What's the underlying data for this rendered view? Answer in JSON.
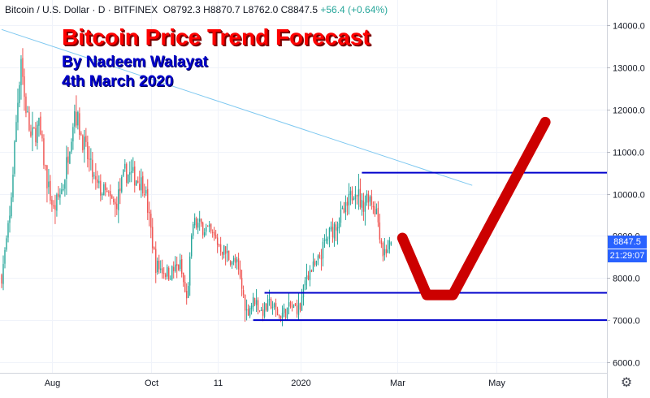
{
  "header": {
    "symbol": "Bitcoin / U.S. Dollar",
    "sep1": "·",
    "interval": "D",
    "sep2": "·",
    "exchange": "BITFINEX",
    "o_label": "O",
    "o_value": "8792.3",
    "h_label": "H",
    "h_value": "8870.7",
    "l_label": "L",
    "l_value": "8762.0",
    "c_label": "C",
    "c_value": "8847.5",
    "change": "+56.4 (+0.64%)"
  },
  "annotation": {
    "title": "Bitcoin Price Trend Forecast",
    "author": "By Nadeem Walayat",
    "date": "4th March 2020"
  },
  "price_badge": {
    "value": "8847.5",
    "color": "#2962ff"
  },
  "time_badge": {
    "value": "21:29:07",
    "color": "#2962ff"
  },
  "settings_icon": "gear-icon",
  "colors": {
    "up": "#26a69a",
    "down": "#ef5350",
    "level_lines": "#0000cc",
    "trendline": "#7ec8f0",
    "forecast": "#cc0000"
  },
  "chart_data": {
    "type": "candlestick",
    "symbol": "Bitcoin / U.S. Dollar",
    "interval": "D",
    "exchange": "BITFINEX",
    "ylim": [
      5750,
      14600
    ],
    "y_ticks": [
      6000,
      7000,
      8000,
      9000,
      10000,
      11000,
      12000,
      13000,
      14000
    ],
    "y_tick_labels": [
      "6000.0",
      "7000.0",
      "8000.0",
      "9000.0",
      "10000.0",
      "11000.0",
      "12000.0",
      "13000.0",
      "14000.0"
    ],
    "x_ticks": [
      {
        "label": "Aug",
        "day": 31
      },
      {
        "label": "Oct",
        "day": 92
      },
      {
        "label": "11",
        "day": 133
      },
      {
        "label": "2020",
        "day": 184
      },
      {
        "label": "Mar",
        "day": 244
      },
      {
        "label": "May",
        "day": 305
      }
    ],
    "x_range_days": [
      -1,
      373
    ],
    "last_price": 8847.5,
    "last_ohlc": {
      "open": 8792.3,
      "high": 8870.7,
      "low": 8762.0,
      "close": 8847.5,
      "change": 56.4,
      "change_pct": 0.64
    },
    "anchors": [
      {
        "day": 0,
        "price": 8050
      },
      {
        "day": 5,
        "price": 9400
      },
      {
        "day": 9,
        "price": 11700
      },
      {
        "day": 12,
        "price": 13300
      },
      {
        "day": 14,
        "price": 12300
      },
      {
        "day": 18,
        "price": 11300
      },
      {
        "day": 23,
        "price": 11600
      },
      {
        "day": 28,
        "price": 10300
      },
      {
        "day": 32,
        "price": 9600
      },
      {
        "day": 38,
        "price": 10200
      },
      {
        "day": 45,
        "price": 12000
      },
      {
        "day": 52,
        "price": 11000
      },
      {
        "day": 58,
        "price": 10200
      },
      {
        "day": 64,
        "price": 10000
      },
      {
        "day": 70,
        "price": 9700
      },
      {
        "day": 76,
        "price": 10500
      },
      {
        "day": 82,
        "price": 10400
      },
      {
        "day": 88,
        "price": 10200
      },
      {
        "day": 95,
        "price": 8300
      },
      {
        "day": 103,
        "price": 8100
      },
      {
        "day": 110,
        "price": 8300
      },
      {
        "day": 114,
        "price": 7450
      },
      {
        "day": 118,
        "price": 9300
      },
      {
        "day": 125,
        "price": 9200
      },
      {
        "day": 132,
        "price": 8900
      },
      {
        "day": 138,
        "price": 8600
      },
      {
        "day": 145,
        "price": 8300
      },
      {
        "day": 151,
        "price": 7200
      },
      {
        "day": 156,
        "price": 7500
      },
      {
        "day": 160,
        "price": 7200
      },
      {
        "day": 166,
        "price": 7400
      },
      {
        "day": 171,
        "price": 7100
      },
      {
        "day": 178,
        "price": 7300
      },
      {
        "day": 184,
        "price": 7300
      },
      {
        "day": 188,
        "price": 8100
      },
      {
        "day": 194,
        "price": 8300
      },
      {
        "day": 200,
        "price": 8900
      },
      {
        "day": 206,
        "price": 9300
      },
      {
        "day": 212,
        "price": 9600
      },
      {
        "day": 218,
        "price": 10200
      },
      {
        "day": 222,
        "price": 9700
      },
      {
        "day": 226,
        "price": 10000
      },
      {
        "day": 231,
        "price": 9600
      },
      {
        "day": 235,
        "price": 8600
      },
      {
        "day": 240,
        "price": 8800
      }
    ],
    "horizontal_levels": [
      {
        "price": 10500,
        "from_day": 222
      },
      {
        "price": 7650,
        "from_day": 162
      },
      {
        "price": 7000,
        "from_day": 155
      }
    ],
    "trendline": [
      {
        "day": 0,
        "price": 13900
      },
      {
        "day": 290,
        "price": 10200
      }
    ],
    "forecast_path": [
      {
        "day": 247,
        "price": 8950
      },
      {
        "day": 262,
        "price": 7600
      },
      {
        "day": 278,
        "price": 7600
      },
      {
        "day": 335,
        "price": 11700
      }
    ]
  }
}
